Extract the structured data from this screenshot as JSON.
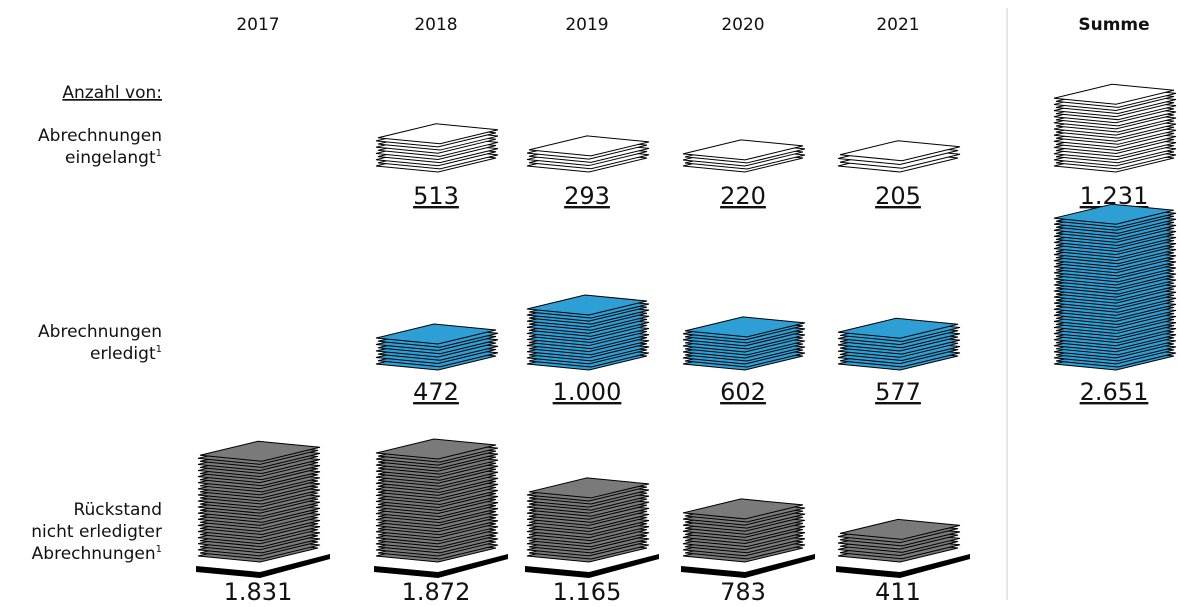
{
  "chart_data": {
    "type": "pictogram",
    "header": "Anzahl von:",
    "footnote_mark": "1",
    "categories": [
      "2017",
      "2018",
      "2019",
      "2020",
      "2021",
      "Summe"
    ],
    "series": [
      {
        "name": [
          "Abrechnungen",
          "eingelangt"
        ],
        "color": "#ffffff",
        "values": [
          null,
          513,
          293,
          220,
          205,
          1231
        ],
        "value_labels": [
          null,
          "513",
          "293",
          "220",
          "205",
          "1.231"
        ]
      },
      {
        "name": [
          "Abrechnungen",
          "erledigt"
        ],
        "color": "#2e9fd4",
        "values": [
          null,
          472,
          1000,
          602,
          577,
          2651
        ],
        "value_labels": [
          null,
          "472",
          "1.000",
          "602",
          "577",
          "2.651"
        ]
      },
      {
        "name": [
          "Rückstand",
          "nicht erledigter",
          "Abrechnungen"
        ],
        "color": "#7a7a7a",
        "values": [
          1831,
          1872,
          1165,
          783,
          411,
          null
        ],
        "value_labels": [
          "1.831",
          "1.872",
          "1.165",
          "783",
          "411",
          null
        ]
      }
    ]
  }
}
